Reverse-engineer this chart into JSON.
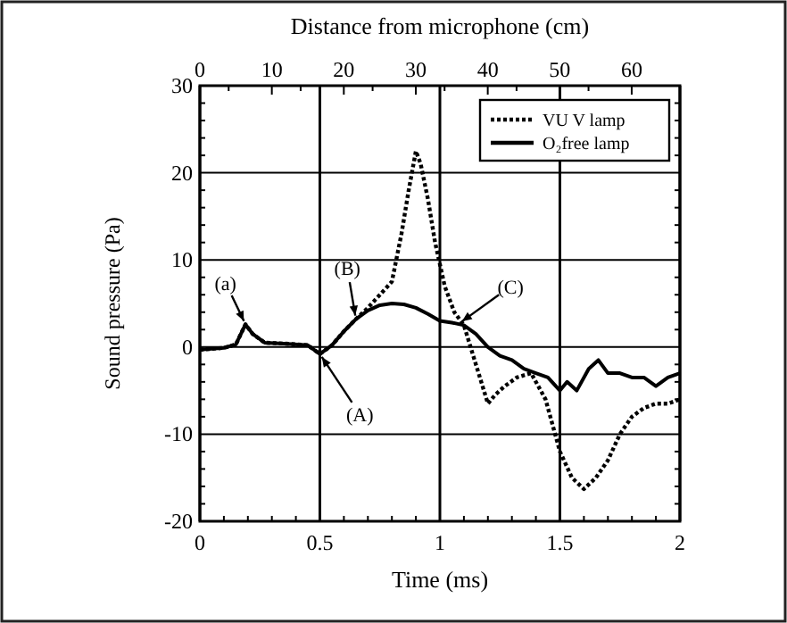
{
  "chart_data": {
    "type": "line",
    "xlabel": "Time (ms)",
    "ylabel": "Sound pressure (Pa)",
    "x2label": "Distance from microphone (cm)",
    "xlim": [
      0,
      2
    ],
    "xticks": [
      0,
      0.5,
      1,
      1.5,
      2
    ],
    "ylim": [
      -20,
      30
    ],
    "yticks": [
      -20,
      -10,
      0,
      10,
      20,
      30
    ],
    "x2lim": [
      0,
      66.7
    ],
    "x2ticks": [
      0,
      10,
      20,
      30,
      40,
      50,
      60
    ],
    "grid": true,
    "legend": "top right",
    "marker": "none",
    "series": [
      {
        "name": "VU V lamp",
        "color": "#000000",
        "line_style": "dotted",
        "x": [
          0,
          0.05,
          0.1,
          0.15,
          0.19,
          0.22,
          0.27,
          0.35,
          0.45,
          0.5,
          0.55,
          0.6,
          0.65,
          0.7,
          0.75,
          0.8,
          0.84,
          0.87,
          0.9,
          0.92,
          0.95,
          0.98,
          1.02,
          1.06,
          1.1,
          1.15,
          1.2,
          1.23,
          1.27,
          1.32,
          1.38,
          1.44,
          1.48,
          1.5,
          1.55,
          1.6,
          1.65,
          1.7,
          1.75,
          1.8,
          1.85,
          1.9,
          1.95,
          2
        ],
        "values": [
          -0.3,
          -0.2,
          -0.1,
          0.3,
          2.6,
          1.5,
          0.5,
          0.4,
          0.2,
          -0.8,
          0.2,
          1.8,
          3.2,
          4.5,
          6,
          7.5,
          13,
          18,
          22.5,
          21,
          17,
          12,
          7,
          4,
          2.5,
          -2,
          -6.5,
          -5.5,
          -4.5,
          -3.5,
          -3,
          -6,
          -10,
          -12,
          -15,
          -16.3,
          -15,
          -13,
          -10,
          -8,
          -7,
          -6.5,
          -6.5,
          -6
        ]
      },
      {
        "name": "O₂free lamp",
        "color": "#000000",
        "line_style": "solid",
        "x": [
          0,
          0.05,
          0.1,
          0.15,
          0.19,
          0.22,
          0.27,
          0.35,
          0.45,
          0.5,
          0.55,
          0.6,
          0.65,
          0.7,
          0.75,
          0.8,
          0.85,
          0.9,
          0.95,
          1.0,
          1.05,
          1.1,
          1.15,
          1.2,
          1.25,
          1.3,
          1.35,
          1.4,
          1.45,
          1.5,
          1.53,
          1.57,
          1.62,
          1.66,
          1.7,
          1.75,
          1.8,
          1.85,
          1.9,
          1.95,
          2
        ],
        "values": [
          -0.3,
          -0.2,
          -0.1,
          0.3,
          2.6,
          1.5,
          0.5,
          0.4,
          0.2,
          -0.8,
          0.2,
          1.8,
          3.2,
          4.2,
          4.8,
          5,
          4.9,
          4.5,
          3.8,
          3,
          2.8,
          2.5,
          1.5,
          0,
          -1,
          -1.5,
          -2.5,
          -3,
          -3.5,
          -5,
          -4,
          -5,
          -2.5,
          -1.5,
          -3,
          -3,
          -3.5,
          -3.5,
          -4.5,
          -3.5,
          -3
        ]
      }
    ],
    "annotations": [
      {
        "text": "(a)",
        "x": 0.19,
        "y": 2.6
      },
      {
        "text": "(A)",
        "x": 0.5,
        "y": -0.8
      },
      {
        "text": "(B)",
        "x": 0.65,
        "y": 3.2
      },
      {
        "text": "(C)",
        "x": 1.08,
        "y": 2.7
      }
    ]
  }
}
